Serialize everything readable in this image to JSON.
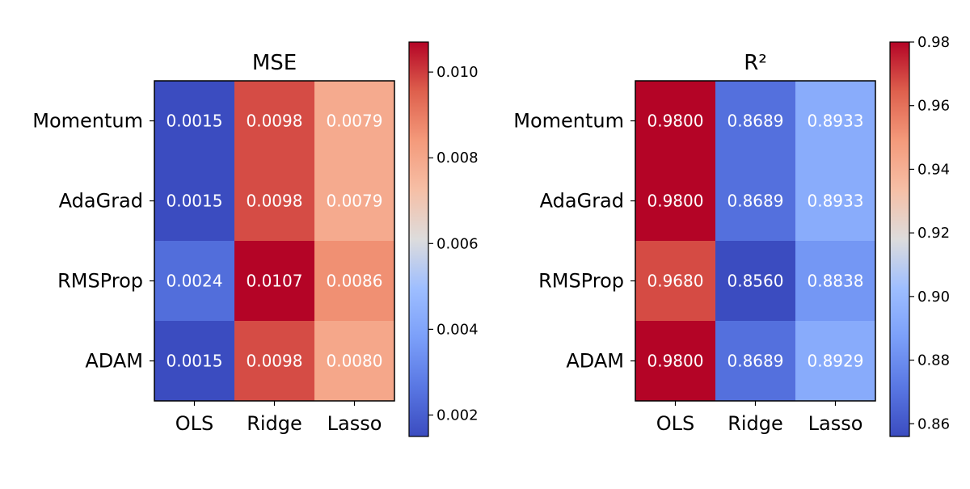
{
  "chart_data": [
    {
      "type": "heatmap",
      "title": "MSE",
      "x_categories": [
        "OLS",
        "Ridge",
        "Lasso"
      ],
      "y_categories": [
        "Momentum",
        "AdaGrad",
        "RMSProp",
        "ADAM"
      ],
      "values": [
        [
          0.0015,
          0.0098,
          0.0079
        ],
        [
          0.0015,
          0.0098,
          0.0079
        ],
        [
          0.0024,
          0.0107,
          0.0086
        ],
        [
          0.0015,
          0.0098,
          0.008
        ]
      ],
      "value_labels": [
        [
          "0.0015",
          "0.0098",
          "0.0079"
        ],
        [
          "0.0015",
          "0.0098",
          "0.0079"
        ],
        [
          "0.0024",
          "0.0107",
          "0.0086"
        ],
        [
          "0.0015",
          "0.0098",
          "0.0080"
        ]
      ],
      "colormap": "coolwarm",
      "colorbar": {
        "vmin": 0.0015,
        "vmax": 0.0107,
        "ticks": [
          0.002,
          0.004,
          0.006,
          0.008,
          0.01
        ],
        "tick_labels": [
          "0.002",
          "0.004",
          "0.006",
          "0.008",
          "0.010"
        ]
      }
    },
    {
      "type": "heatmap",
      "title": "R²",
      "x_categories": [
        "OLS",
        "Ridge",
        "Lasso"
      ],
      "y_categories": [
        "Momentum",
        "AdaGrad",
        "RMSProp",
        "ADAM"
      ],
      "values": [
        [
          0.98,
          0.8689,
          0.8933
        ],
        [
          0.98,
          0.8689,
          0.8933
        ],
        [
          0.968,
          0.856,
          0.8838
        ],
        [
          0.98,
          0.8689,
          0.8929
        ]
      ],
      "value_labels": [
        [
          "0.9800",
          "0.8689",
          "0.8933"
        ],
        [
          "0.9800",
          "0.8689",
          "0.8933"
        ],
        [
          "0.9680",
          "0.8560",
          "0.8838"
        ],
        [
          "0.9800",
          "0.8689",
          "0.8929"
        ]
      ],
      "colormap": "coolwarm",
      "colorbar": {
        "vmin": 0.856,
        "vmax": 0.98,
        "ticks": [
          0.86,
          0.88,
          0.9,
          0.92,
          0.94,
          0.96,
          0.98
        ],
        "tick_labels": [
          "0.86",
          "0.88",
          "0.90",
          "0.92",
          "0.94",
          "0.96",
          "0.98"
        ]
      }
    }
  ]
}
